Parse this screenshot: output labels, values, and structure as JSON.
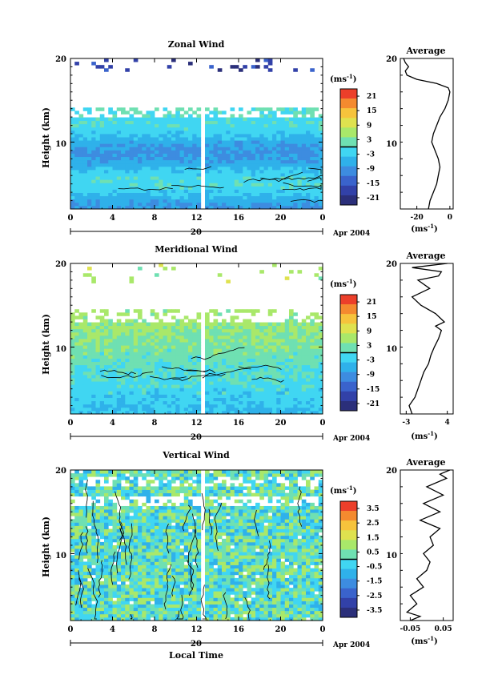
{
  "chart_data": [
    {
      "type": "heatmap",
      "title": "Zonal Wind",
      "ylabel": "Height (km)",
      "xticks": [
        "0",
        "4",
        "8",
        "12",
        "16",
        "20",
        "0"
      ],
      "yticks": [
        "10",
        "20"
      ],
      "day_label": "20",
      "date_label": "Apr 2004",
      "ylim": [
        2,
        20
      ],
      "xlim": [
        0,
        24
      ],
      "colorbar_unit": "(ms",
      "colorbar_unit_exp": "-1",
      "colorbar_ticks": [
        "21",
        "15",
        "9",
        "3",
        "-3",
        "-9",
        "-15",
        "-21"
      ],
      "colorbar_range": [
        -24,
        24
      ],
      "profile": {
        "title": "Average",
        "xticks": [
          "-20",
          "0"
        ],
        "xlim": [
          -30,
          2
        ],
        "unit": "(ms",
        "unit_exp": "-1",
        "points": [
          [
            -13,
            2
          ],
          [
            -12,
            3
          ],
          [
            -10,
            4
          ],
          [
            -8,
            5
          ],
          [
            -7,
            6
          ],
          [
            -6,
            7
          ],
          [
            -7,
            8
          ],
          [
            -9,
            9
          ],
          [
            -11,
            10
          ],
          [
            -10,
            11
          ],
          [
            -8,
            12
          ],
          [
            -6,
            13
          ],
          [
            -3,
            14
          ],
          [
            -1,
            15
          ],
          [
            0,
            16
          ],
          [
            -1,
            16.5
          ],
          [
            -8,
            17
          ],
          [
            -20,
            17.5
          ],
          [
            -26,
            18
          ],
          [
            -27,
            18.5
          ],
          [
            -25,
            19
          ],
          [
            -27,
            19.5
          ],
          [
            -28,
            20
          ]
        ]
      }
    },
    {
      "type": "heatmap",
      "title": "Meridional Wind",
      "ylabel": "Height (km)",
      "xticks": [
        "0",
        "4",
        "8",
        "12",
        "16",
        "20",
        "0"
      ],
      "yticks": [
        "10",
        "20"
      ],
      "day_label": "20",
      "date_label": "Apr 2004",
      "ylim": [
        2,
        20
      ],
      "xlim": [
        0,
        24
      ],
      "colorbar_unit": "(ms",
      "colorbar_unit_exp": "-1",
      "colorbar_ticks": [
        "21",
        "15",
        "9",
        "3",
        "-3",
        "-9",
        "-15",
        "-21"
      ],
      "colorbar_range": [
        -24,
        24
      ],
      "profile": {
        "title": "Average",
        "xticks": [
          "-3",
          "4"
        ],
        "xlim": [
          -4,
          5
        ],
        "unit": "(ms",
        "unit_exp": "-1",
        "points": [
          [
            -2,
            2
          ],
          [
            -2.5,
            3
          ],
          [
            -1.5,
            4
          ],
          [
            -1,
            5
          ],
          [
            -0.5,
            6
          ],
          [
            0,
            7
          ],
          [
            0.8,
            8
          ],
          [
            1.2,
            9
          ],
          [
            1.8,
            10
          ],
          [
            2.5,
            11
          ],
          [
            3,
            12
          ],
          [
            2,
            12.5
          ],
          [
            3.5,
            13
          ],
          [
            2,
            14
          ],
          [
            -0.5,
            15
          ],
          [
            -2,
            16
          ],
          [
            1,
            17
          ],
          [
            -1,
            18
          ],
          [
            2.5,
            18.5
          ],
          [
            3,
            19
          ],
          [
            -2,
            19.5
          ],
          [
            4,
            20
          ]
        ]
      }
    },
    {
      "type": "heatmap",
      "title": "Vertical Wind",
      "ylabel": "Height (km)",
      "xlabel": "Local Time",
      "xticks": [
        "0",
        "4",
        "8",
        "12",
        "16",
        "20",
        "0"
      ],
      "yticks": [
        "10",
        "20"
      ],
      "day_label": "20",
      "date_label": "Apr 2004",
      "ylim": [
        2,
        20
      ],
      "xlim": [
        0,
        24
      ],
      "colorbar_unit": "(ms",
      "colorbar_unit_exp": "-1",
      "colorbar_ticks": [
        "3.5",
        "2.5",
        "1.5",
        "0.5",
        "-0.5",
        "-1.5",
        "-2.5",
        "-3.5"
      ],
      "colorbar_range": [
        -4,
        4
      ],
      "profile": {
        "title": "Average",
        "xticks": [
          "-0.05",
          "0.05"
        ],
        "xlim": [
          -0.08,
          0.08
        ],
        "unit": "(ms",
        "unit_exp": "-1",
        "points": [
          [
            -0.05,
            2
          ],
          [
            -0.02,
            2.5
          ],
          [
            -0.06,
            3
          ],
          [
            -0.03,
            4
          ],
          [
            -0.05,
            5
          ],
          [
            -0.01,
            6
          ],
          [
            -0.03,
            7
          ],
          [
            0,
            8
          ],
          [
            0.01,
            9
          ],
          [
            -0.01,
            10
          ],
          [
            0.02,
            11
          ],
          [
            0.01,
            12
          ],
          [
            0.04,
            13
          ],
          [
            -0.02,
            14
          ],
          [
            0.04,
            15
          ],
          [
            -0.01,
            16
          ],
          [
            0.05,
            17
          ],
          [
            0,
            18
          ],
          [
            0.06,
            19
          ],
          [
            0.04,
            19.5
          ],
          [
            0.07,
            20
          ]
        ]
      }
    }
  ]
}
